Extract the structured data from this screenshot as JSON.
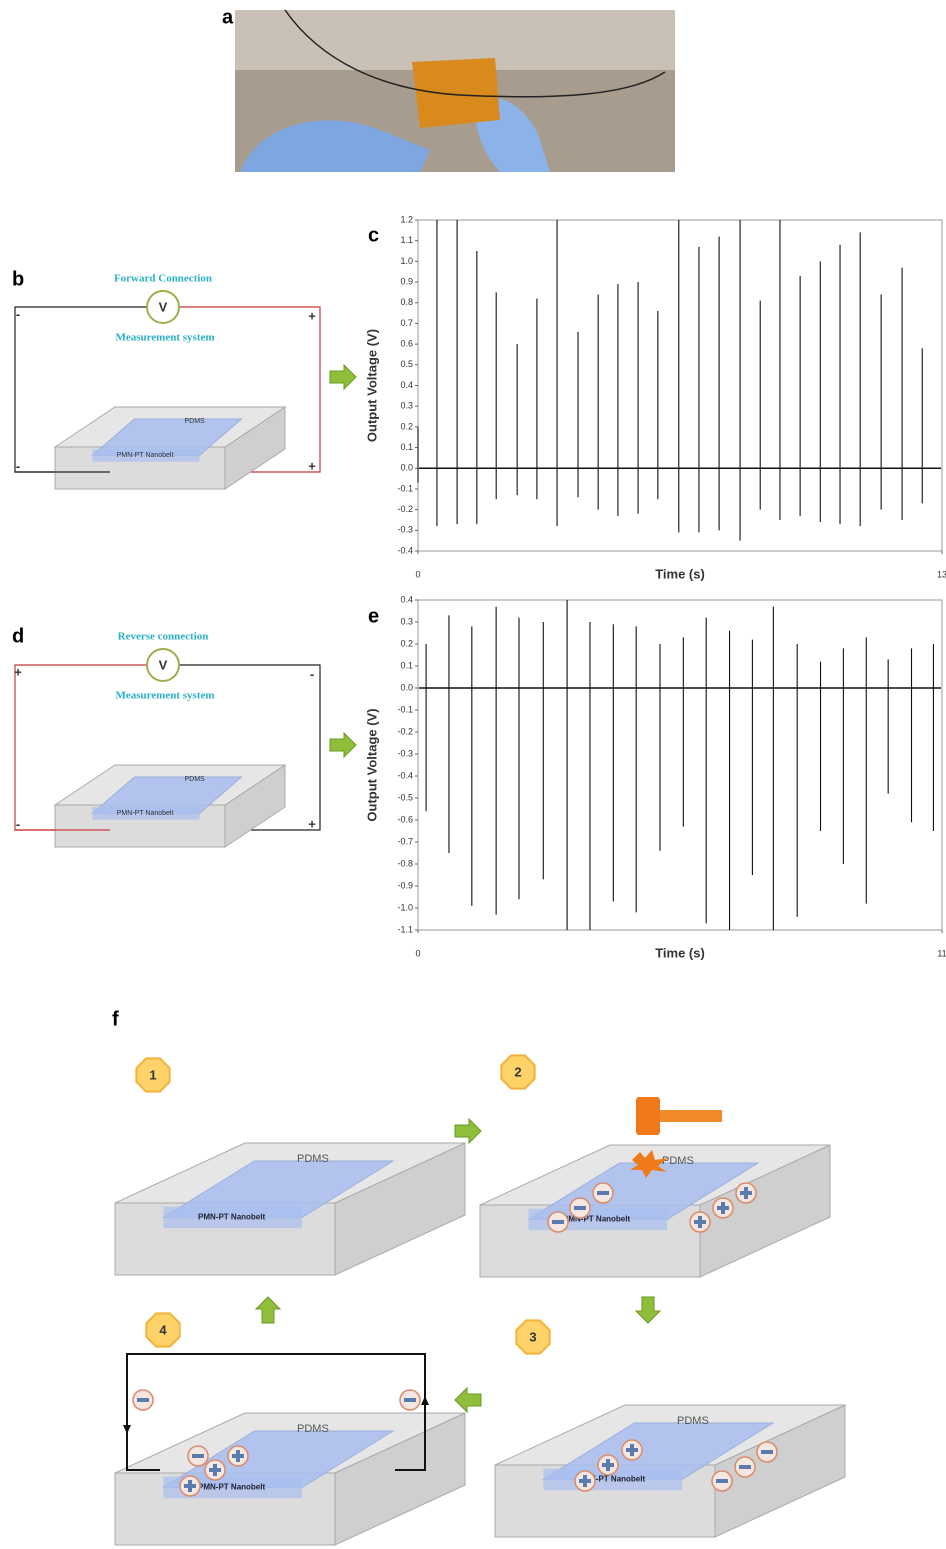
{
  "panel_labels": [
    "a",
    "b",
    "c",
    "d",
    "e",
    "f"
  ],
  "forward": {
    "title": "Forward Connection",
    "meter": "V",
    "system": "Measurement system",
    "signs": [
      "-",
      "+",
      "-",
      "+"
    ],
    "pdms": "PDMS",
    "nanobelt": "PMN-PT Nanobelt"
  },
  "reverse": {
    "title": "Reverse connection",
    "meter": "V",
    "system": "Measurement system",
    "signs": [
      "+",
      "-",
      "-",
      "+"
    ],
    "pdms": "PDMS",
    "nanobelt": "PMN-PT Nanobelt"
  },
  "mechanism": {
    "steps": [
      {
        "number": "1",
        "pdms": "PDMS",
        "nanobelt": "PMN-PT Nanobelt"
      },
      {
        "number": "2",
        "pdms": "PDMS",
        "nanobelt": "PMN-PT Nanobelt"
      },
      {
        "number": "3",
        "pdms": "PDMS",
        "nanobelt": "PMN-PT Nanobelt"
      },
      {
        "number": "4",
        "pdms": "PDMS",
        "nanobelt": "PMN-PT Nanobelt"
      }
    ]
  },
  "chart_data": [
    {
      "type": "spike",
      "ylabel": "Output Voltage (V)",
      "xlabel": "Time (s)",
      "color": "#111111",
      "x": [
        0,
        0.47,
        0.97,
        1.46,
        1.94,
        2.46,
        2.95,
        3.45,
        3.97,
        4.47,
        4.96,
        5.46,
        5.95,
        6.47,
        6.97,
        7.47,
        7.99,
        8.49,
        8.98,
        9.48,
        9.98,
        10.47,
        10.97,
        11.49,
        12.01,
        12.51
      ],
      "peaks": [
        0.2,
        1.2,
        1.2,
        1.05,
        0.85,
        0.6,
        0.82,
        1.2,
        0.66,
        0.84,
        0.89,
        0.9,
        0.76,
        1.2,
        1.07,
        1.12,
        1.2,
        0.81,
        1.2,
        0.93,
        1.0,
        1.08,
        1.14,
        0.84,
        0.97,
        0.58
      ],
      "troughs": [
        -0.07,
        -0.28,
        -0.27,
        -0.27,
        -0.15,
        -0.13,
        -0.15,
        -0.28,
        -0.14,
        -0.2,
        -0.23,
        -0.22,
        -0.15,
        -0.31,
        -0.31,
        -0.3,
        -0.35,
        -0.2,
        -0.25,
        -0.23,
        -0.26,
        -0.27,
        -0.28,
        -0.2,
        -0.25,
        -0.17
      ],
      "xlim": [
        0,
        13
      ],
      "ylim": [
        -0.4,
        1.2
      ],
      "xticks": [
        0,
        13
      ],
      "yticks": [
        -0.4,
        -0.3,
        -0.2,
        -0.1,
        {
          "value": 0,
          "label": "0.0"
        },
        0.1,
        0.2,
        0.3,
        0.4,
        0.5,
        0.6,
        0.7,
        0.8,
        0.9,
        {
          "value": 1,
          "label": "1.0"
        },
        1.1,
        1.2
      ]
    },
    {
      "type": "spike",
      "ylabel": "Output Voltage (V)",
      "xlabel": "Time (s)",
      "color": "#111111",
      "x": [
        0.17,
        0.65,
        1.13,
        1.64,
        2.12,
        2.63,
        3.13,
        3.61,
        4.1,
        4.58,
        5.08,
        5.57,
        6.05,
        6.54,
        7.02,
        7.46,
        7.96,
        8.45,
        8.93,
        9.41,
        9.87,
        10.36,
        10.82
      ],
      "peaks": [
        0.2,
        0.33,
        0.28,
        0.37,
        0.32,
        0.3,
        0.4,
        0.3,
        0.29,
        0.28,
        0.2,
        0.23,
        0.32,
        0.26,
        0.22,
        0.37,
        0.2,
        0.12,
        0.18,
        0.23,
        0.13,
        0.18,
        0.2
      ],
      "troughs": [
        -0.56,
        -0.75,
        -0.99,
        -1.03,
        -0.96,
        -0.87,
        -1.1,
        -1.1,
        -0.97,
        -1.02,
        -0.74,
        -0.63,
        -1.07,
        -1.1,
        -0.85,
        -1.1,
        -1.04,
        -0.65,
        -0.8,
        -0.98,
        -0.48,
        -0.61,
        -0.65
      ],
      "xlim": [
        0,
        11
      ],
      "ylim": [
        -1.1,
        0.4
      ],
      "xticks": [
        0,
        11
      ],
      "yticks": [
        {
          "value": -1.1,
          "label": "-1.1"
        },
        {
          "value": -1,
          "label": "-1.0"
        },
        -0.9,
        -0.8,
        -0.7,
        -0.6,
        -0.5,
        -0.4,
        -0.3,
        -0.2,
        -0.1,
        {
          "value": 0,
          "label": "0.0"
        },
        0.1,
        0.2,
        0.3,
        0.4
      ]
    }
  ]
}
